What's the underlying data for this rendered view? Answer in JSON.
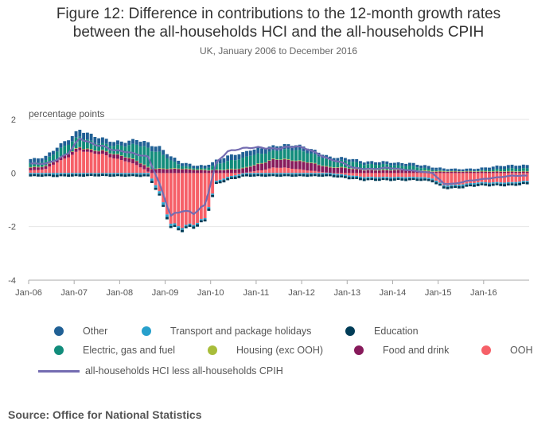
{
  "title": {
    "line1": "Figure 12: Difference in contributions to the 12-month growth rates",
    "line2": "between the all-households HCI and the all-households CPIH"
  },
  "subtitle": "UK, January 2006 to December 2016",
  "source": "Source: Office for National Statistics",
  "chart_data": {
    "type": "bar",
    "stacked": true,
    "title": "Figure 12: Difference in contributions to the 12-month growth rates between the all-households HCI and the all-households CPIH",
    "ylabel": "percentage points",
    "xlabel": "",
    "ylim": [
      -4,
      2
    ],
    "yticks": [
      2,
      0,
      -2,
      -4
    ],
    "xticks": [
      "Jan-06",
      "Jan-07",
      "Jan-08",
      "Jan-09",
      "Jan-10",
      "Jan-11",
      "Jan-12",
      "Jan-13",
      "Jan-14",
      "Jan-15",
      "Jan-16"
    ],
    "legend_position": "bottom",
    "grid": true,
    "colors": {
      "Other": "#206095",
      "Transport and package holidays": "#27a0cc",
      "Education": "#003c57",
      "Electric, gas and fuel": "#118c7b",
      "Housing (exc OOH)": "#a8bd3a",
      "Food and drink": "#871a5b",
      "OOH": "#f66068",
      "line": "#746cb1"
    },
    "series": [
      {
        "name": "Other",
        "type": "bar"
      },
      {
        "name": "Transport and package holidays",
        "type": "bar"
      },
      {
        "name": "Education",
        "type": "bar"
      },
      {
        "name": "Electric, gas and fuel",
        "type": "bar"
      },
      {
        "name": "Housing (exc OOH)",
        "type": "bar"
      },
      {
        "name": "Food and drink",
        "type": "bar"
      },
      {
        "name": "OOH",
        "type": "bar"
      },
      {
        "name": "all-households HCI less all-households CPIH",
        "type": "line"
      }
    ],
    "quarterly": {
      "x": [
        "2006Q1",
        "2006Q2",
        "2006Q3",
        "2006Q4",
        "2007Q1",
        "2007Q2",
        "2007Q3",
        "2007Q4",
        "2008Q1",
        "2008Q2",
        "2008Q3",
        "2008Q4",
        "2009Q1",
        "2009Q2",
        "2009Q3",
        "2009Q4",
        "2010Q1",
        "2010Q2",
        "2010Q3",
        "2010Q4",
        "2011Q1",
        "2011Q2",
        "2011Q3",
        "2011Q4",
        "2012Q1",
        "2012Q2",
        "2012Q3",
        "2012Q4",
        "2013Q1",
        "2013Q2",
        "2013Q3",
        "2013Q4",
        "2014Q1",
        "2014Q2",
        "2014Q3",
        "2014Q4",
        "2015Q1",
        "2015Q2",
        "2015Q3",
        "2015Q4",
        "2016Q1",
        "2016Q2",
        "2016Q3",
        "2016Q4"
      ],
      "OOH": [
        0.1,
        0.15,
        0.4,
        0.6,
        0.85,
        0.75,
        0.7,
        0.55,
        0.45,
        0.3,
        0.05,
        -0.7,
        -1.9,
        -2.0,
        -1.9,
        -1.7,
        -0.3,
        -0.15,
        -0.05,
        0.05,
        0.1,
        0.2,
        0.2,
        0.15,
        0.1,
        0.05,
        0.0,
        -0.05,
        -0.1,
        -0.15,
        -0.15,
        -0.15,
        -0.15,
        -0.15,
        -0.15,
        -0.2,
        -0.45,
        -0.45,
        -0.4,
        -0.35,
        -0.35,
        -0.35,
        -0.35,
        -0.3
      ],
      "Food and drink": [
        0.1,
        0.1,
        0.1,
        0.12,
        0.1,
        0.1,
        0.12,
        0.15,
        0.15,
        0.15,
        0.15,
        0.15,
        0.15,
        0.15,
        0.12,
        0.1,
        0.1,
        0.12,
        0.15,
        0.2,
        0.25,
        0.3,
        0.3,
        0.3,
        0.3,
        0.25,
        0.2,
        0.2,
        0.15,
        0.1,
        0.1,
        0.1,
        0.1,
        0.1,
        0.08,
        0.05,
        0.05,
        0.05,
        0.05,
        0.05,
        0.05,
        0.05,
        0.05,
        0.05
      ],
      "Housing (exc OOH)": [
        0.02,
        0.02,
        0.02,
        0.02,
        0.02,
        0.02,
        0.02,
        0.02,
        0.02,
        0.02,
        0.02,
        0.02,
        0.02,
        0.02,
        0.02,
        0.02,
        0.02,
        0.02,
        0.02,
        0.02,
        0.02,
        0.02,
        0.02,
        0.02,
        0.02,
        0.02,
        0.02,
        0.02,
        0.02,
        0.02,
        0.02,
        0.02,
        0.02,
        0.02,
        0.02,
        0.02,
        0.02,
        0.02,
        0.02,
        0.02,
        0.02,
        0.02,
        0.02,
        0.02
      ],
      "Electric, gas and fuel": [
        0.15,
        0.2,
        0.3,
        0.35,
        0.4,
        0.3,
        0.25,
        0.3,
        0.4,
        0.6,
        0.7,
        0.6,
        0.3,
        0.1,
        0.05,
        0.05,
        0.2,
        0.3,
        0.35,
        0.4,
        0.35,
        0.3,
        0.35,
        0.4,
        0.35,
        0.3,
        0.25,
        0.25,
        0.25,
        0.2,
        0.2,
        0.2,
        0.15,
        0.15,
        0.1,
        0.05,
        0.02,
        0.0,
        0.0,
        0.02,
        0.05,
        0.08,
        0.1,
        0.1
      ],
      "Transport and package holidays": [
        -0.05,
        -0.05,
        -0.06,
        -0.05,
        -0.05,
        -0.04,
        -0.04,
        -0.05,
        -0.05,
        -0.05,
        -0.06,
        -0.1,
        -0.08,
        -0.06,
        -0.05,
        -0.05,
        -0.05,
        -0.05,
        -0.05,
        -0.05,
        -0.05,
        -0.05,
        -0.05,
        -0.05,
        -0.05,
        -0.05,
        -0.05,
        -0.05,
        -0.05,
        -0.05,
        -0.05,
        -0.05,
        -0.05,
        -0.05,
        -0.05,
        -0.05,
        -0.05,
        -0.05,
        -0.05,
        -0.05,
        -0.05,
        -0.05,
        -0.05,
        -0.05
      ],
      "Education": [
        -0.08,
        -0.08,
        -0.08,
        -0.08,
        -0.08,
        -0.08,
        -0.08,
        -0.08,
        -0.08,
        -0.08,
        -0.08,
        -0.08,
        -0.08,
        -0.08,
        -0.08,
        -0.08,
        -0.08,
        -0.08,
        -0.08,
        -0.08,
        -0.08,
        -0.08,
        -0.08,
        -0.08,
        -0.08,
        -0.08,
        -0.08,
        -0.08,
        -0.08,
        -0.08,
        -0.08,
        -0.08,
        -0.08,
        -0.08,
        -0.08,
        -0.08,
        -0.08,
        -0.08,
        -0.08,
        -0.08,
        -0.08,
        -0.08,
        -0.08,
        -0.08
      ],
      "Other": [
        0.15,
        0.15,
        0.15,
        0.18,
        0.25,
        0.25,
        0.2,
        0.15,
        0.15,
        0.18,
        0.2,
        0.2,
        0.15,
        0.12,
        0.1,
        0.1,
        0.15,
        0.2,
        0.2,
        0.2,
        0.2,
        0.18,
        0.18,
        0.18,
        0.18,
        0.15,
        0.12,
        0.1,
        0.1,
        0.1,
        0.1,
        0.1,
        0.1,
        0.1,
        0.1,
        0.1,
        0.08,
        0.08,
        0.08,
        0.08,
        0.1,
        0.12,
        0.12,
        0.12
      ],
      "all-households HCI less all-households CPIH": [
        0.35,
        0.35,
        0.5,
        0.75,
        1.3,
        1.1,
        1.0,
        0.85,
        0.8,
        0.7,
        0.6,
        -0.4,
        -1.6,
        -1.4,
        -1.5,
        -1.2,
        0.4,
        0.8,
        0.9,
        0.95,
        0.95,
        0.9,
        0.95,
        1.0,
        0.9,
        0.7,
        0.5,
        0.4,
        0.2,
        0.15,
        0.15,
        0.2,
        0.15,
        0.1,
        0.05,
        0.0,
        -0.4,
        -0.4,
        -0.3,
        -0.25,
        -0.2,
        -0.15,
        -0.1,
        -0.1
      ]
    }
  }
}
